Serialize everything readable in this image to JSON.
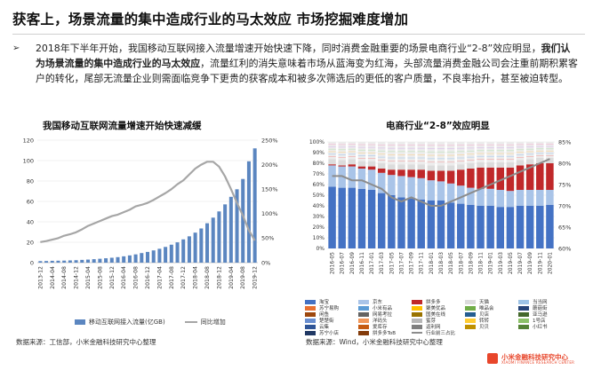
{
  "page": {
    "title": "获客上，场景流量的集中造成行业的马太效应 市场挖掘难度增加",
    "bullet_symbol": "➢",
    "paragraph_before": "2018年下半年开始，我国移动互联网接入流量增速开始快速下降，同时消费金融重要的场景电商行业“2-8”效应明显，",
    "paragraph_bold": "我们认为场景流量的集中造成行业的马太效应",
    "paragraph_after": "，流量红利的消失意味着市场从蓝海变为红海，头部流量消费金融公司会注重前期积累客户的转化，尾部无流量企业则需面临竞争下更贵的获客成本和被多次筛选后的更低的客户质量，不良率抬升，甚至被迫转型。"
  },
  "left_chart": {
    "title": "我国移动互联网流量增速开始快速减缓",
    "source": "数据来源：工信部，小米金融科技研究中心整理",
    "legend_bar": "移动互联网接入流量(亿GB)",
    "legend_line": "同比增加",
    "bar_color": "#5b86c0",
    "line_color": "#a6a6a6"
  },
  "right_chart": {
    "title": "电商行业“2-8”效应明显",
    "source": "数据来源：Wind，小米金融科技研究中心整理",
    "legend_items": [
      "淘宝",
      "京东",
      "拼多多",
      "天猫",
      "当当网",
      "苏宁易购",
      "小米有品",
      "聚美优品",
      "唯品会",
      "蘑菇街",
      "闲鱼",
      "网易考拉",
      "国美在线",
      "贝店",
      "亚马逊",
      "楚楚街",
      "洋码头",
      "蜜芽",
      "转转",
      "1号店",
      "云集",
      "爱库存",
      "返利网",
      "贝贝",
      "小红书",
      "苏宁小店",
      "拼多多ToB",
      "行业前三占比"
    ],
    "colors": {
      "tb": "#4472c4",
      "jd": "#a9c4e8",
      "pdd": "#c0282a",
      "tm": "#dcdcdc",
      "other": "#ececec",
      "line": "#8c8c8c"
    }
  },
  "footer": {
    "logo_name": "小米金融科技研究中心",
    "logo_sub": "XIAOMI FINANCE RESEARCH CENTER"
  },
  "chart_data": [
    {
      "type": "bar",
      "title": "我国移动互联网流量增速开始快速减缓",
      "categories": [
        "2013-12",
        "2014-02",
        "2014-04",
        "2014-06",
        "2014-08",
        "2014-10",
        "2014-12",
        "2015-02",
        "2015-04",
        "2015-06",
        "2015-08",
        "2015-10",
        "2015-12",
        "2016-02",
        "2016-04",
        "2016-06",
        "2016-08",
        "2016-10",
        "2016-12",
        "2017-02",
        "2017-04",
        "2017-06",
        "2017-08",
        "2017-10",
        "2017-12",
        "2018-02",
        "2018-04",
        "2018-06",
        "2018-08",
        "2018-10",
        "2018-12",
        "2019-02",
        "2019-04",
        "2019-06",
        "2019-08",
        "2019-10",
        "2019-12"
      ],
      "y_left_ticks": [
        0,
        20,
        40,
        60,
        80,
        100,
        120
      ],
      "y_right_ticks": [
        "0%",
        "50%",
        "100%",
        "150%",
        "200%",
        "250%"
      ],
      "ylim_left": [
        0,
        120
      ],
      "ylim_right": [
        0,
        250
      ],
      "series": [
        {
          "name": "移动互联网接入流量(亿GB)",
          "kind": "bar",
          "values": [
            1.5,
            1.6,
            1.8,
            1.9,
            2.0,
            2.2,
            2.4,
            2.7,
            3.0,
            3.4,
            3.8,
            4.3,
            4.8,
            5.4,
            6.2,
            7.1,
            8.1,
            9.4,
            10.5,
            12.0,
            13.6,
            15.4,
            17.6,
            19.9,
            22.8,
            25.8,
            29.4,
            33.5,
            38.6,
            44.1,
            50.2,
            57.1,
            64.5,
            71.9,
            82.0,
            99.3,
            112.0
          ]
        },
        {
          "name": "同比增加",
          "kind": "line",
          "axis": "right",
          "values": [
            42,
            44,
            47,
            50,
            55,
            58,
            62,
            68,
            75,
            80,
            85,
            90,
            95,
            98,
            103,
            108,
            115,
            118,
            122,
            128,
            135,
            142,
            150,
            160,
            168,
            180,
            192,
            200,
            206,
            206,
            196,
            176,
            150,
            122,
            96,
            66,
            45
          ]
        }
      ]
    },
    {
      "type": "bar",
      "title": "电商行业“2-8”效应明显",
      "categories": [
        "2016-05",
        "2016-07",
        "2016-09",
        "2016-11",
        "2017-01",
        "2017-03",
        "2017-05",
        "2017-07",
        "2017-09",
        "2017-11",
        "2018-01",
        "2018-03",
        "2018-05",
        "2018-07",
        "2018-09",
        "2018-11",
        "2019-01",
        "2019-03",
        "2019-05",
        "2019-07",
        "2019-09",
        "2019-11",
        "2020-01"
      ],
      "y_left_ticks": [
        "0%",
        "10%",
        "20%",
        "30%",
        "40%",
        "50%",
        "60%",
        "70%",
        "80%",
        "90%",
        "100%"
      ],
      "y_right_ticks": [
        "60%",
        "65%",
        "70%",
        "75%",
        "80%",
        "85%"
      ],
      "ylim_right": [
        60,
        85
      ],
      "series": [
        {
          "name": "淘宝",
          "values": [
            0.58,
            0.57,
            0.57,
            0.56,
            0.55,
            0.52,
            0.5,
            0.48,
            0.47,
            0.46,
            0.45,
            0.45,
            0.43,
            0.42,
            0.41,
            0.4,
            0.4,
            0.39,
            0.39,
            0.4,
            0.4,
            0.4,
            0.41
          ]
        },
        {
          "name": "京东",
          "values": [
            0.2,
            0.2,
            0.2,
            0.19,
            0.19,
            0.19,
            0.19,
            0.2,
            0.2,
            0.2,
            0.19,
            0.18,
            0.18,
            0.17,
            0.16,
            0.16,
            0.16,
            0.16,
            0.15,
            0.15,
            0.15,
            0.15,
            0.14
          ]
        },
        {
          "name": "拼多多",
          "values": [
            0.01,
            0.01,
            0.02,
            0.02,
            0.03,
            0.04,
            0.05,
            0.06,
            0.07,
            0.08,
            0.09,
            0.1,
            0.12,
            0.15,
            0.18,
            0.2,
            0.2,
            0.21,
            0.22,
            0.23,
            0.24,
            0.25,
            0.25
          ]
        },
        {
          "name": "天猫",
          "values": [
            0.05,
            0.05,
            0.05,
            0.05,
            0.05,
            0.05,
            0.05,
            0.05,
            0.05,
            0.05,
            0.05,
            0.05,
            0.05,
            0.05,
            0.05,
            0.05,
            0.05,
            0.05,
            0.05,
            0.05,
            0.05,
            0.05,
            0.05
          ]
        },
        {
          "name": "行业前三占比",
          "kind": "line",
          "axis": "right",
          "values": [
            77,
            77,
            76,
            76,
            75,
            74,
            72,
            71,
            72,
            71,
            70,
            70,
            71,
            72,
            73,
            74,
            75,
            76,
            77,
            78,
            79,
            80,
            81
          ]
        }
      ]
    }
  ]
}
